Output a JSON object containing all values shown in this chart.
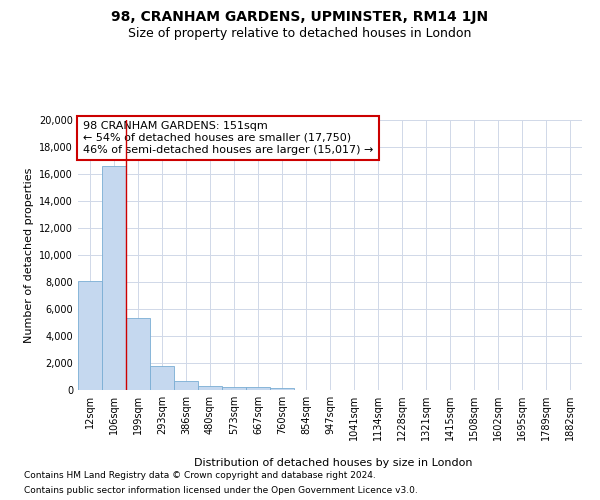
{
  "title": "98, CRANHAM GARDENS, UPMINSTER, RM14 1JN",
  "subtitle": "Size of property relative to detached houses in London",
  "xlabel": "Distribution of detached houses by size in London",
  "ylabel": "Number of detached properties",
  "annotation_line1": "98 CRANHAM GARDENS: 151sqm",
  "annotation_line2": "← 54% of detached houses are smaller (17,750)",
  "annotation_line3": "46% of semi-detached houses are larger (15,017) →",
  "footnote1": "Contains HM Land Registry data © Crown copyright and database right 2024.",
  "footnote2": "Contains public sector information licensed under the Open Government Licence v3.0.",
  "bin_labels": [
    "12sqm",
    "106sqm",
    "199sqm",
    "293sqm",
    "386sqm",
    "480sqm",
    "573sqm",
    "667sqm",
    "760sqm",
    "854sqm",
    "947sqm",
    "1041sqm",
    "1134sqm",
    "1228sqm",
    "1321sqm",
    "1415sqm",
    "1508sqm",
    "1602sqm",
    "1695sqm",
    "1789sqm",
    "1882sqm"
  ],
  "bin_values": [
    8100,
    16600,
    5300,
    1750,
    700,
    300,
    250,
    200,
    120,
    0,
    0,
    0,
    0,
    0,
    0,
    0,
    0,
    0,
    0,
    0,
    0
  ],
  "bar_color": "#c5d8ef",
  "bar_edge_color": "#7aadd4",
  "vline_color": "#cc0000",
  "vline_x": 1.5,
  "box_edge_color": "#cc0000",
  "grid_color": "#d0d8e8",
  "ylim": [
    0,
    20000
  ],
  "yticks": [
    0,
    2000,
    4000,
    6000,
    8000,
    10000,
    12000,
    14000,
    16000,
    18000,
    20000
  ],
  "background_color": "#ffffff",
  "title_fontsize": 10,
  "subtitle_fontsize": 9,
  "axis_label_fontsize": 8,
  "tick_fontsize": 7,
  "annotation_fontsize": 8,
  "footnote_fontsize": 6.5
}
